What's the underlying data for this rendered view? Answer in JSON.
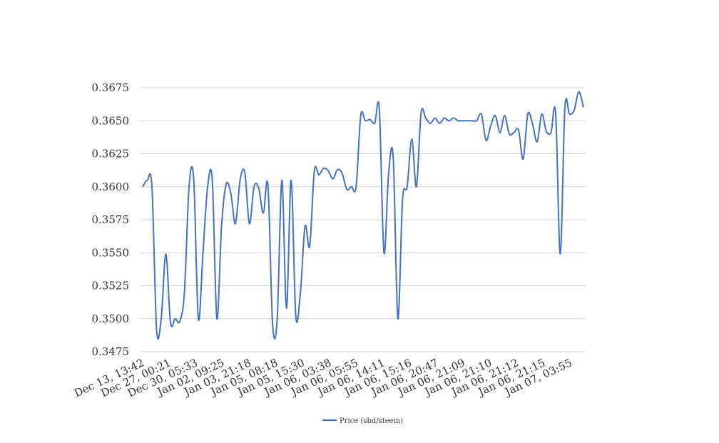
{
  "chart_data": {
    "type": "line",
    "title": "",
    "xlabel": "",
    "ylabel": "",
    "ylim": [
      0.3475,
      0.3675
    ],
    "y_ticks": [
      "0.3475",
      "0.3500",
      "0.3525",
      "0.3550",
      "0.3575",
      "0.3600",
      "0.3625",
      "0.3650",
      "0.3675"
    ],
    "x_tick_labels": [
      "Dec 13, 13:42",
      "Dec 27, 00:21",
      "Dec 30, 05:33",
      "Jan 02, 09:25",
      "Jan 03, 21:18",
      "Jan 05, 08:18",
      "Jan 05, 15:30",
      "Jan 06, 03:38",
      "Jan 06, 05:55",
      "Jan 06, 14:11",
      "Jan 06, 15:16",
      "Jan 06, 20:47",
      "Jan 06, 21:09",
      "Jan 06, 21:10",
      "Jan 06, 21:12",
      "Jan 06, 21:15",
      "Jan 07, 03:55"
    ],
    "grid": true,
    "legend_position": "bottom",
    "series": [
      {
        "name": "Price (sbd/steem)",
        "color": "#4472c4",
        "values": [
          0.36,
          0.3605,
          0.36,
          0.3492,
          0.35,
          0.3549,
          0.3497,
          0.35,
          0.3498,
          0.352,
          0.36,
          0.3606,
          0.35,
          0.355,
          0.36,
          0.3605,
          0.35,
          0.357,
          0.3602,
          0.3595,
          0.3572,
          0.3605,
          0.3611,
          0.3572,
          0.36,
          0.3599,
          0.358,
          0.3601,
          0.3496,
          0.35,
          0.3605,
          0.3508,
          0.3605,
          0.3502,
          0.352,
          0.357,
          0.3555,
          0.3612,
          0.3609,
          0.3614,
          0.3612,
          0.3606,
          0.3613,
          0.361,
          0.3598,
          0.36,
          0.36,
          0.3654,
          0.365,
          0.3651,
          0.3648,
          0.3659,
          0.355,
          0.361,
          0.3622,
          0.35,
          0.359,
          0.36,
          0.3636,
          0.36,
          0.3656,
          0.3652,
          0.3648,
          0.3652,
          0.3648,
          0.3652,
          0.365,
          0.3652,
          0.365,
          0.365,
          0.365,
          0.365,
          0.365,
          0.3655,
          0.3635,
          0.3646,
          0.3654,
          0.3641,
          0.3654,
          0.364,
          0.3641,
          0.3643,
          0.3621,
          0.3655,
          0.3648,
          0.3634,
          0.3655,
          0.3642,
          0.3641,
          0.3656,
          0.3549,
          0.366,
          0.3655,
          0.3658,
          0.3672,
          0.366
        ]
      }
    ]
  }
}
